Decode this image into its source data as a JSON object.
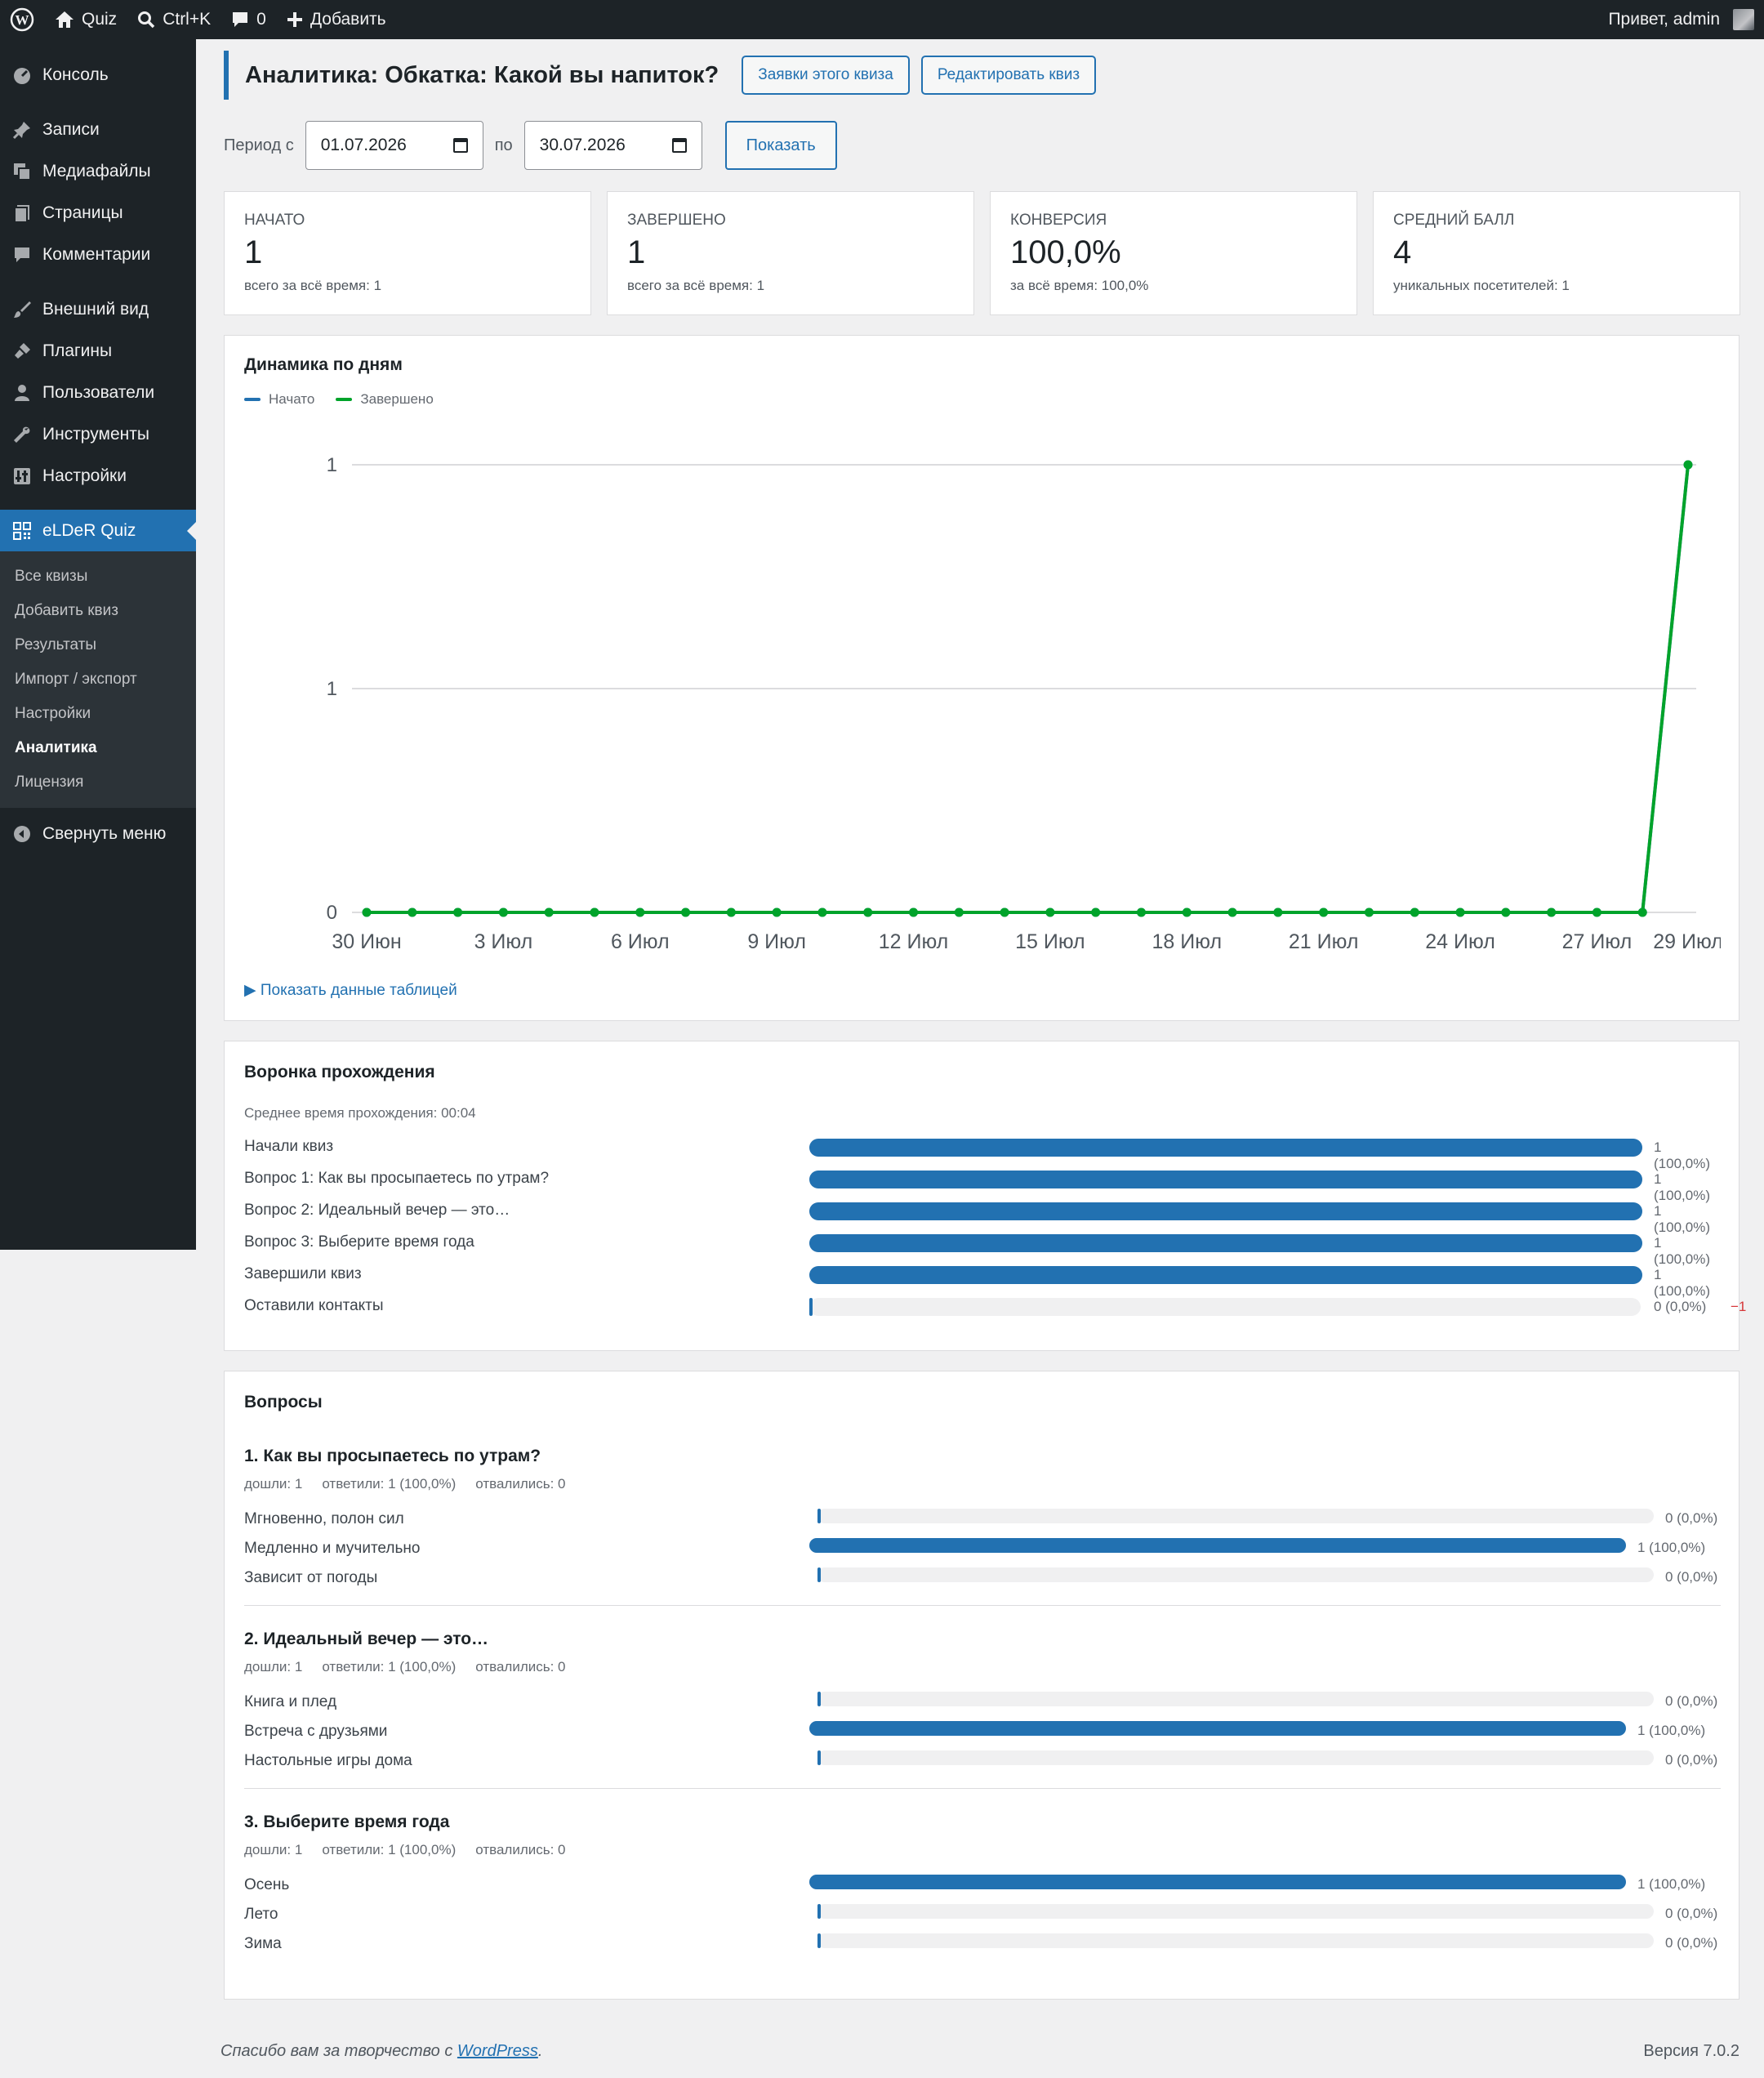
{
  "adminbar": {
    "site": "Quiz",
    "search": "Ctrl+K",
    "comments_count": "0",
    "add_new": "Добавить",
    "greeting": "Привет, admin"
  },
  "sidebar": {
    "items": [
      {
        "label": "Консоль",
        "icon": "dashboard-icon"
      },
      {
        "label": "Записи",
        "icon": "pin-icon"
      },
      {
        "label": "Медиафайлы",
        "icon": "media-icon"
      },
      {
        "label": "Страницы",
        "icon": "pages-icon"
      },
      {
        "label": "Комментарии",
        "icon": "comment-icon"
      },
      {
        "label": "Внешний вид",
        "icon": "brush-icon"
      },
      {
        "label": "Плагины",
        "icon": "plugin-icon"
      },
      {
        "label": "Пользователи",
        "icon": "user-icon"
      },
      {
        "label": "Инструменты",
        "icon": "wrench-icon"
      },
      {
        "label": "Настройки",
        "icon": "settings-icon"
      },
      {
        "label": "eLDeR Quiz",
        "icon": "grid-icon"
      }
    ],
    "submenu": [
      "Все квизы",
      "Добавить квиз",
      "Результаты",
      "Импорт / экспорт",
      "Настройки",
      "Аналитика",
      "Лицензия"
    ],
    "collapse": "Свернуть меню"
  },
  "header": {
    "title": "Аналитика: Обкатка: Какой вы напиток?",
    "btn_requests": "Заявки этого квиза",
    "btn_edit": "Редактировать квиз"
  },
  "period": {
    "from_label": "Период с",
    "from": "01.07.2026",
    "to_label": "по",
    "to": "30.07.2026",
    "show": "Показать"
  },
  "stats": [
    {
      "label": "НАЧАТО",
      "value": "1",
      "sub": "всего за всё время: 1"
    },
    {
      "label": "ЗАВЕРШЕНО",
      "value": "1",
      "sub": "всего за всё время: 1"
    },
    {
      "label": "КОНВЕРСИЯ",
      "value": "100,0%",
      "sub": "за всё время: 100,0%"
    },
    {
      "label": "СРЕДНИЙ БАЛЛ",
      "value": "4",
      "sub": "уникальных посетителей: 1"
    }
  ],
  "dynamics": {
    "title": "Динамика по дням",
    "toggle": "▶ Показать данные таблицей"
  },
  "chart_data": {
    "type": "line",
    "title": "Динамика по дням",
    "y_ticks": [
      "0",
      "1",
      "1"
    ],
    "ylim": [
      0,
      1
    ],
    "x_ticks": [
      "30 Июн",
      "3 Июл",
      "6 Июл",
      "9 Июл",
      "12 Июл",
      "15 Июл",
      "18 Июл",
      "21 Июл",
      "24 Июл",
      "27 Июл",
      "29 Июл"
    ],
    "grid": true,
    "legend_position": "top-left",
    "series": [
      {
        "name": "Начато",
        "color": "#2271b1",
        "values": [
          0,
          0,
          0,
          0,
          0,
          0,
          0,
          0,
          0,
          0,
          0,
          0,
          0,
          0,
          0,
          0,
          0,
          0,
          0,
          0,
          0,
          0,
          0,
          0,
          0,
          0,
          0,
          0,
          0,
          1
        ]
      },
      {
        "name": "Завершено",
        "color": "#00a32a",
        "values": [
          0,
          0,
          0,
          0,
          0,
          0,
          0,
          0,
          0,
          0,
          0,
          0,
          0,
          0,
          0,
          0,
          0,
          0,
          0,
          0,
          0,
          0,
          0,
          0,
          0,
          0,
          0,
          0,
          0,
          1
        ]
      }
    ]
  },
  "funnel": {
    "title": "Воронка прохождения",
    "avg_time": "Среднее время прохождения: 00:04",
    "rows": [
      {
        "label": "Начали квиз",
        "value": "1 (100,0%)",
        "fraction": 1
      },
      {
        "label": "Вопрос 1: Как вы просыпаетесь по утрам?",
        "value": "1 (100,0%)",
        "fraction": 1
      },
      {
        "label": "Вопрос 2: Идеальный вечер — это…",
        "value": "1 (100,0%)",
        "fraction": 1
      },
      {
        "label": "Вопрос 3: Выберите время года",
        "value": "1 (100,0%)",
        "fraction": 1
      },
      {
        "label": "Завершили квиз",
        "value": "1 (100,0%)",
        "fraction": 1
      },
      {
        "label": "Оставили контакты",
        "value": "0 (0,0%)",
        "fraction": 0,
        "delta": "−1"
      }
    ]
  },
  "questions": {
    "title": "Вопросы",
    "items": [
      {
        "title": "1. Как вы просыпаетесь по утрам?",
        "reached": "дошли: 1",
        "answered": "ответили: 1 (100,0%)",
        "dropped": "отвалились: 0",
        "answers": [
          {
            "label": "Мгновенно, полон сил",
            "value": "0 (0,0%)",
            "fraction": 0
          },
          {
            "label": "Медленно и мучительно",
            "value": "1 (100,0%)",
            "fraction": 1
          },
          {
            "label": "Зависит от погоды",
            "value": "0 (0,0%)",
            "fraction": 0
          }
        ]
      },
      {
        "title": "2. Идеальный вечер — это…",
        "reached": "дошли: 1",
        "answered": "ответили: 1 (100,0%)",
        "dropped": "отвалились: 0",
        "answers": [
          {
            "label": "Книга и плед",
            "value": "0 (0,0%)",
            "fraction": 0
          },
          {
            "label": "Встреча с друзьями",
            "value": "1 (100,0%)",
            "fraction": 1
          },
          {
            "label": "Настольные игры дома",
            "value": "0 (0,0%)",
            "fraction": 0
          }
        ]
      },
      {
        "title": "3. Выберите время года",
        "reached": "дошли: 1",
        "answered": "ответили: 1 (100,0%)",
        "dropped": "отвалились: 0",
        "answers": [
          {
            "label": "Осень",
            "value": "1 (100,0%)",
            "fraction": 1
          },
          {
            "label": "Лето",
            "value": "0 (0,0%)",
            "fraction": 0
          },
          {
            "label": "Зима",
            "value": "0 (0,0%)",
            "fraction": 0
          }
        ]
      }
    ]
  },
  "footer": {
    "thanks_prefix": "Спасибо вам за творчество с ",
    "thanks_link": "WordPress",
    "thanks_suffix": ".",
    "version": "Версия 7.0.2"
  }
}
